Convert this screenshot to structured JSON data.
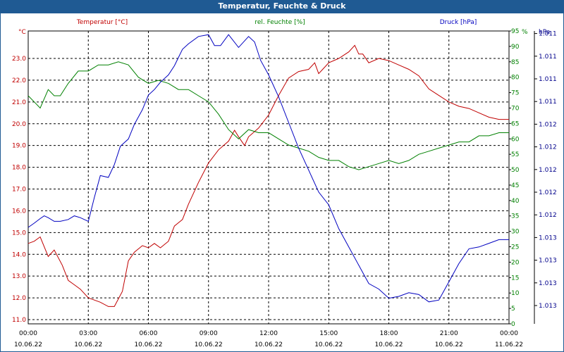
{
  "window": {
    "title": "Temperatur, Feuchte & Druck"
  },
  "chart_data": {
    "type": "line",
    "title": "Temperatur, Feuchte & Druck",
    "grid": true,
    "x_ticks": [
      {
        "time": "00:00",
        "date": "10.06.22"
      },
      {
        "time": "03:00",
        "date": "10.06.22"
      },
      {
        "time": "06:00",
        "date": "10.06.22"
      },
      {
        "time": "09:00",
        "date": "10.06.22"
      },
      {
        "time": "12:00",
        "date": "10.06.22"
      },
      {
        "time": "15:00",
        "date": "10.06.22"
      },
      {
        "time": "18:00",
        "date": "10.06.22"
      },
      {
        "time": "21:00",
        "date": "10.06.22"
      },
      {
        "time": "00:00",
        "date": "11.06.22"
      }
    ],
    "x_range_hours": [
      0,
      24
    ],
    "left_axis": {
      "unit": "°C",
      "ylim": [
        11.0,
        23.0
      ],
      "ticks": [
        "11.0",
        "12.0",
        "13.0",
        "14.0",
        "15.0",
        "16.0",
        "17.0",
        "18.0",
        "19.0",
        "20.0",
        "21.0",
        "22.0",
        "23.0"
      ],
      "color": "#c00000"
    },
    "right_axis_humidity": {
      "unit": "%",
      "ylim": [
        0,
        95
      ],
      "ticks": [
        "0",
        "5",
        "10",
        "15",
        "20",
        "25",
        "30",
        "35",
        "40",
        "45",
        "50",
        "55",
        "60",
        "65",
        "70",
        "75",
        "80",
        "85",
        "90",
        "95"
      ],
      "color": "#008000"
    },
    "right_axis_pressure": {
      "unit": "hPa",
      "ticks": [
        "1.011",
        "1.011",
        "1.011",
        "1.011",
        "1.012",
        "1.012",
        "1.012",
        "1.012",
        "1.012",
        "1.013",
        "1.013",
        "1.013",
        "1.013"
      ],
      "color": "#00008b"
    },
    "legend": [
      {
        "label": "Temperatur [°C]",
        "color": "#c00000"
      },
      {
        "label": "rel. Feuchte [%]",
        "color": "#008000"
      },
      {
        "label": "Druck [hPa]",
        "color": "#0000c0"
      }
    ],
    "series": [
      {
        "name": "Temperatur [°C]",
        "axis": "left",
        "color": "#c00000",
        "x": [
          0,
          0.3,
          0.6,
          1.0,
          1.3,
          1.7,
          2.0,
          2.3,
          2.6,
          3.0,
          3.3,
          3.6,
          4.0,
          4.3,
          4.7,
          5.0,
          5.3,
          5.7,
          6.0,
          6.3,
          6.6,
          7.0,
          7.3,
          7.7,
          8.0,
          8.5,
          9.0,
          9.5,
          10.0,
          10.3,
          10.5,
          10.8,
          11.0,
          11.5,
          12.0,
          12.5,
          13.0,
          13.5,
          14.0,
          14.3,
          14.5,
          14.7,
          15.0,
          15.5,
          16.0,
          16.3,
          16.5,
          16.7,
          17.0,
          17.5,
          18.0,
          18.5,
          19.0,
          19.5,
          20.0,
          20.5,
          21.0,
          21.5,
          22.0,
          22.5,
          23.0,
          23.5,
          24.0
        ],
        "values": [
          14.5,
          14.6,
          14.8,
          13.9,
          14.2,
          13.5,
          12.8,
          12.6,
          12.4,
          12.0,
          11.9,
          11.8,
          11.6,
          11.6,
          12.3,
          13.7,
          14.1,
          14.4,
          14.3,
          14.5,
          14.3,
          14.6,
          15.3,
          15.6,
          16.3,
          17.3,
          18.2,
          18.8,
          19.2,
          19.7,
          19.4,
          19.0,
          19.4,
          19.8,
          20.4,
          21.3,
          22.1,
          22.4,
          22.5,
          22.8,
          22.3,
          22.5,
          22.8,
          23.0,
          23.3,
          23.6,
          23.2,
          23.2,
          22.8,
          23.0,
          22.9,
          22.7,
          22.5,
          22.2,
          21.6,
          21.3,
          21.0,
          20.8,
          20.7,
          20.5,
          20.3,
          20.2,
          20.2
        ]
      },
      {
        "name": "rel. Feuchte [%]",
        "axis": "humidity",
        "color": "#008000",
        "x": [
          0,
          0.3,
          0.6,
          1.0,
          1.3,
          1.6,
          2.0,
          2.5,
          3.0,
          3.5,
          4.0,
          4.5,
          5.0,
          5.5,
          6.0,
          6.5,
          7.0,
          7.5,
          8.0,
          8.5,
          9.0,
          9.5,
          10.0,
          10.5,
          11.0,
          11.5,
          12.0,
          12.5,
          13.0,
          13.5,
          14.0,
          14.5,
          15.0,
          15.5,
          16.0,
          16.5,
          17.0,
          17.5,
          18.0,
          18.5,
          19.0,
          19.5,
          20.0,
          20.5,
          21.0,
          21.5,
          22.0,
          22.5,
          23.0,
          23.5,
          24.0
        ],
        "values": [
          74,
          72,
          70,
          76,
          74,
          74,
          78,
          82,
          82,
          84,
          84,
          85,
          84,
          80,
          78,
          79,
          78,
          76,
          76,
          74,
          72,
          68,
          63,
          60,
          63,
          62,
          62,
          60,
          58,
          57,
          56,
          54,
          53,
          53,
          51,
          50,
          51,
          52,
          53,
          52,
          53,
          55,
          56,
          57,
          58,
          59,
          59,
          61,
          61,
          62,
          62
        ]
      },
      {
        "name": "Druck [hPa]",
        "axis": "pressure",
        "color": "#0000c0",
        "x": [
          0,
          0.3,
          0.6,
          0.8,
          1.0,
          1.3,
          1.6,
          2.0,
          2.3,
          2.6,
          3.0,
          3.3,
          3.6,
          4.0,
          4.3,
          4.6,
          5.0,
          5.3,
          5.7,
          6.0,
          6.3,
          6.6,
          7.0,
          7.3,
          7.7,
          8.0,
          8.5,
          9.0,
          9.3,
          9.6,
          10.0,
          10.5,
          11.0,
          11.3,
          11.6,
          12.0,
          12.5,
          13.0,
          13.5,
          14.0,
          14.5,
          15.0,
          15.5,
          16.0,
          16.5,
          17.0,
          17.5,
          18.0,
          18.5,
          19.0,
          19.5,
          20.0,
          20.5,
          21.0,
          21.5,
          22.0,
          22.5,
          23.0,
          23.5,
          24.0
        ],
        "values": [
          1.01087,
          1.0111,
          1.01135,
          1.0115,
          1.0114,
          1.0112,
          1.0112,
          1.0113,
          1.0115,
          1.0114,
          1.0112,
          1.0125,
          1.0137,
          1.0136,
          1.0143,
          1.0153,
          1.0157,
          1.0165,
          1.0173,
          1.0181,
          1.0184,
          1.0188,
          1.0192,
          1.0197,
          1.0206,
          1.0209,
          1.0213,
          1.0214,
          1.0208,
          1.0208,
          1.0214,
          1.0207,
          1.0213,
          1.021,
          1.02,
          1.0192,
          1.018,
          1.0166,
          1.0152,
          1.014,
          1.0128,
          1.0121,
          1.0108,
          1.0098,
          1.0088,
          1.0078,
          1.0075,
          1.007,
          1.0071,
          1.0073,
          1.0072,
          1.0068,
          1.0069,
          1.0079,
          1.0089,
          1.0097,
          1.0098,
          1.01,
          1.0102,
          1.0102
        ]
      }
    ]
  }
}
